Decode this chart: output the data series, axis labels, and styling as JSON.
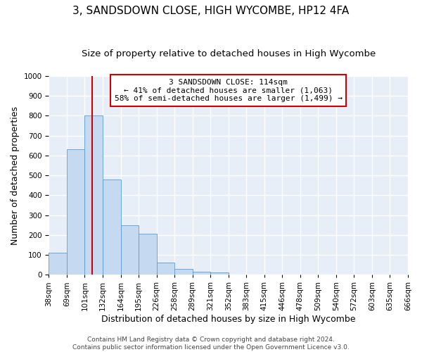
{
  "title": "3, SANDSDOWN CLOSE, HIGH WYCOMBE, HP12 4FA",
  "subtitle": "Size of property relative to detached houses in High Wycombe",
  "xlabel": "Distribution of detached houses by size in High Wycombe",
  "ylabel": "Number of detached properties",
  "bar_values": [
    110,
    630,
    800,
    480,
    250,
    205,
    60,
    30,
    15,
    10,
    0,
    0,
    0,
    0,
    0,
    0,
    0,
    0,
    0,
    0
  ],
  "bin_labels": [
    "38sqm",
    "69sqm",
    "101sqm",
    "132sqm",
    "164sqm",
    "195sqm",
    "226sqm",
    "258sqm",
    "289sqm",
    "321sqm",
    "352sqm",
    "383sqm",
    "415sqm",
    "446sqm",
    "478sqm",
    "509sqm",
    "540sqm",
    "572sqm",
    "603sqm",
    "635sqm",
    "666sqm"
  ],
  "bar_color": "#c5d9f0",
  "bar_edge_color": "#5b9bd5",
  "vline_x": 2.42,
  "vline_color": "#cc0000",
  "ylim": [
    0,
    1000
  ],
  "yticks": [
    0,
    100,
    200,
    300,
    400,
    500,
    600,
    700,
    800,
    900,
    1000
  ],
  "annotation_title": "3 SANDSDOWN CLOSE: 114sqm",
  "annotation_line1": "← 41% of detached houses are smaller (1,063)",
  "annotation_line2": "58% of semi-detached houses are larger (1,499) →",
  "annotation_box_color": "#ffffff",
  "annotation_box_edge_color": "#cc0000",
  "footer_line1": "Contains HM Land Registry data © Crown copyright and database right 2024.",
  "footer_line2": "Contains public sector information licensed under the Open Government Licence v3.0.",
  "background_color": "#ffffff",
  "plot_background_color": "#e8eef8",
  "grid_color": "#ffffff",
  "title_fontsize": 11,
  "subtitle_fontsize": 9.5,
  "axis_label_fontsize": 9,
  "tick_fontsize": 7.5,
  "annotation_fontsize": 8,
  "footer_fontsize": 6.5
}
